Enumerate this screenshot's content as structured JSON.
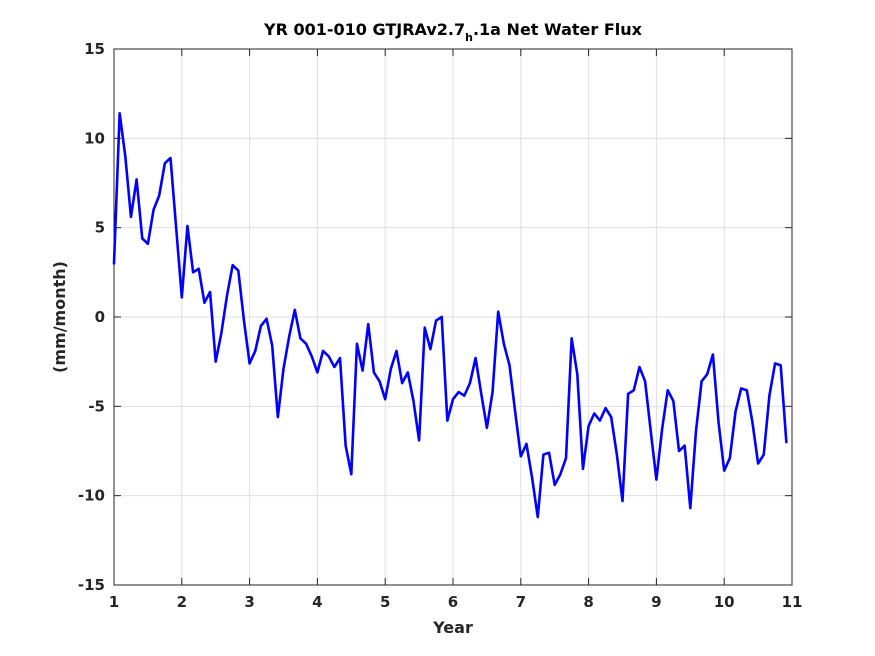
{
  "chart_data": {
    "type": "line",
    "title_main": "YR 001-010 GTJRAv2.7",
    "title_subscript": "h",
    "title_rest": ".1a Net Water Flux",
    "xlabel": "Year",
    "ylabel": "(mm/month)",
    "xlim": [
      1,
      11
    ],
    "ylim": [
      -15,
      15
    ],
    "x_ticks": [
      1,
      2,
      3,
      4,
      5,
      6,
      7,
      8,
      9,
      10,
      11
    ],
    "y_ticks": [
      -15,
      -10,
      -5,
      0,
      5,
      10,
      15
    ],
    "x_tick_labels": [
      "1",
      "2",
      "3",
      "4",
      "5",
      "6",
      "7",
      "8",
      "9",
      "10",
      "11"
    ],
    "y_tick_labels": [
      "-15",
      "-10",
      "-5",
      "0",
      "5",
      "10",
      "15"
    ],
    "grid": true,
    "line_color": "#0000ff",
    "series": [
      {
        "values": [
          3.0,
          11.4,
          9.0,
          5.6,
          7.7,
          4.4,
          4.1,
          6.0,
          6.8,
          8.6,
          8.9,
          5.0,
          1.1,
          5.1,
          2.5,
          2.7,
          0.8,
          1.4,
          -2.5,
          -0.9,
          1.2,
          2.9,
          2.6,
          -0.2,
          -2.6,
          -1.9,
          -0.5,
          -0.1,
          -1.6,
          -5.6,
          -2.9,
          -1.1,
          0.4,
          -1.2,
          -1.5,
          -2.2,
          -3.1,
          -1.9,
          -2.2,
          -2.8,
          -2.3,
          -7.2,
          -8.8,
          -1.5,
          -3.0,
          -0.4,
          -3.1,
          -3.6,
          -4.6,
          -2.9,
          -1.9,
          -3.7,
          -3.1,
          -4.7,
          -6.9,
          -0.6,
          -1.8,
          -0.2,
          0.0,
          -5.8,
          -4.6,
          -4.2,
          -4.4,
          -3.7,
          -2.3,
          -4.3,
          -6.2,
          -4.2,
          0.3,
          -1.5,
          -2.7,
          -5.3,
          -7.8,
          -7.1,
          -9.0,
          -11.2,
          -7.7,
          -7.6,
          -9.4,
          -8.8,
          -7.9,
          -1.2,
          -3.2,
          -8.5,
          -6.1,
          -5.4,
          -5.8,
          -5.1,
          -5.6,
          -7.7,
          -10.3,
          -4.3,
          -4.1,
          -2.8,
          -3.6,
          -6.4,
          -9.1,
          -6.3,
          -4.1,
          -4.7,
          -7.5,
          -7.2,
          -10.7,
          -6.4,
          -3.6,
          -3.2,
          -2.1,
          -5.9,
          -8.6,
          -7.9,
          -5.3,
          -4.0,
          -4.1,
          -5.9,
          -8.2,
          -7.7,
          -4.4,
          -2.6,
          -2.7,
          -7.0
        ]
      }
    ]
  }
}
